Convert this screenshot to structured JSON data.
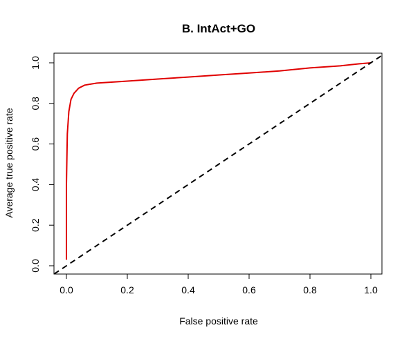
{
  "chart_data": {
    "type": "line",
    "title": "B. IntAct+GO",
    "xlabel": "False positive rate",
    "ylabel": "Average true positive rate",
    "xlim": [
      0.0,
      1.0
    ],
    "ylim": [
      0.0,
      1.0
    ],
    "x_ticks": [
      "0.0",
      "0.2",
      "0.4",
      "0.6",
      "0.8",
      "1.0"
    ],
    "y_ticks": [
      "0.0",
      "0.2",
      "0.4",
      "0.6",
      "0.8",
      "1.0"
    ],
    "grid": false,
    "legend": "none",
    "series": [
      {
        "color": "#e00000",
        "style": "solid",
        "points": [
          [
            0.0,
            0.03
          ],
          [
            0.0,
            0.4
          ],
          [
            0.003,
            0.65
          ],
          [
            0.008,
            0.76
          ],
          [
            0.015,
            0.82
          ],
          [
            0.025,
            0.85
          ],
          [
            0.04,
            0.875
          ],
          [
            0.06,
            0.89
          ],
          [
            0.1,
            0.9
          ],
          [
            0.2,
            0.91
          ],
          [
            0.3,
            0.92
          ],
          [
            0.4,
            0.93
          ],
          [
            0.5,
            0.94
          ],
          [
            0.6,
            0.95
          ],
          [
            0.7,
            0.96
          ],
          [
            0.8,
            0.975
          ],
          [
            0.9,
            0.985
          ],
          [
            0.96,
            0.995
          ],
          [
            1.0,
            1.0
          ]
        ]
      },
      {
        "color": "#000000",
        "style": "dashed",
        "points": [
          [
            -0.04,
            -0.04
          ],
          [
            1.04,
            1.04
          ]
        ]
      }
    ]
  }
}
